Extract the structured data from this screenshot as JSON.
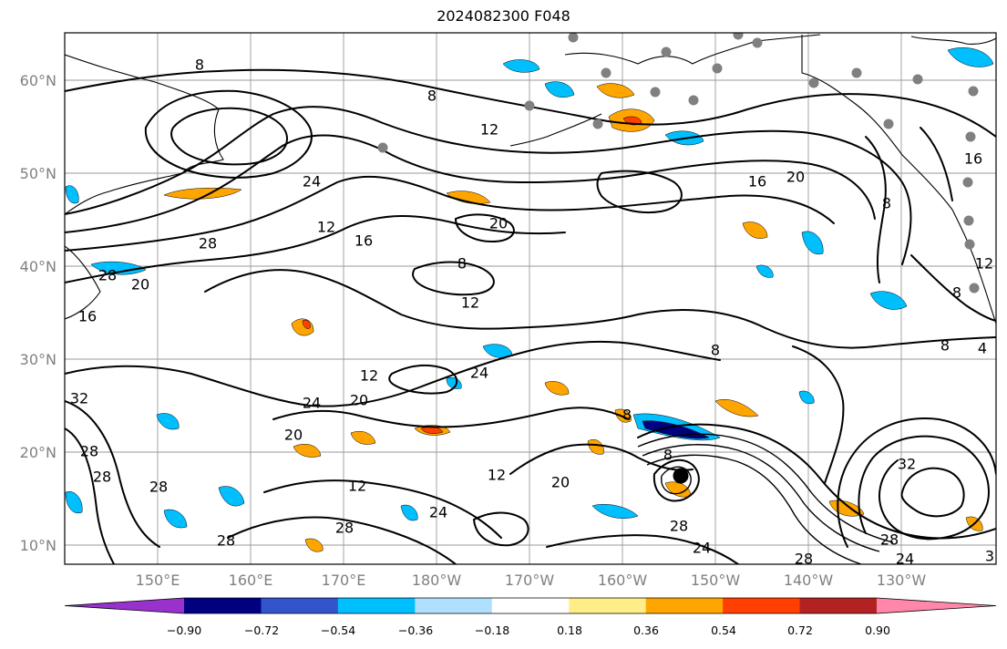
{
  "title": "2024082300 F048",
  "latitude_labels": [
    "60°N",
    "50°N",
    "40°N",
    "30°N",
    "20°N",
    "10°N"
  ],
  "longitude_labels": [
    "150°E",
    "160°E",
    "170°E",
    "180°W",
    "170°W",
    "160°W",
    "150°W",
    "140°W",
    "130°W"
  ],
  "contour_labels": [
    "8",
    "12",
    "16",
    "20",
    "24",
    "28",
    "32",
    "4",
    "3"
  ],
  "colorbar": {
    "tick_labels": [
      "−0.90",
      "−0.72",
      "−0.54",
      "−0.36",
      "−0.18",
      "0.18",
      "0.36",
      "0.54",
      "0.72",
      "0.90"
    ],
    "colors": [
      "#9932cc",
      "#000080",
      "#3355cc",
      "#00bfff",
      "#b0e0ff",
      "#ffffff",
      "#ffee88",
      "#ffa500",
      "#ff4000",
      "#b22222",
      "#ff88aa"
    ]
  },
  "colors": {
    "positive_shade": "#ffa500",
    "negative_shade": "#00bfff",
    "station_marker": "#808080",
    "storm_center": "#000000"
  }
}
